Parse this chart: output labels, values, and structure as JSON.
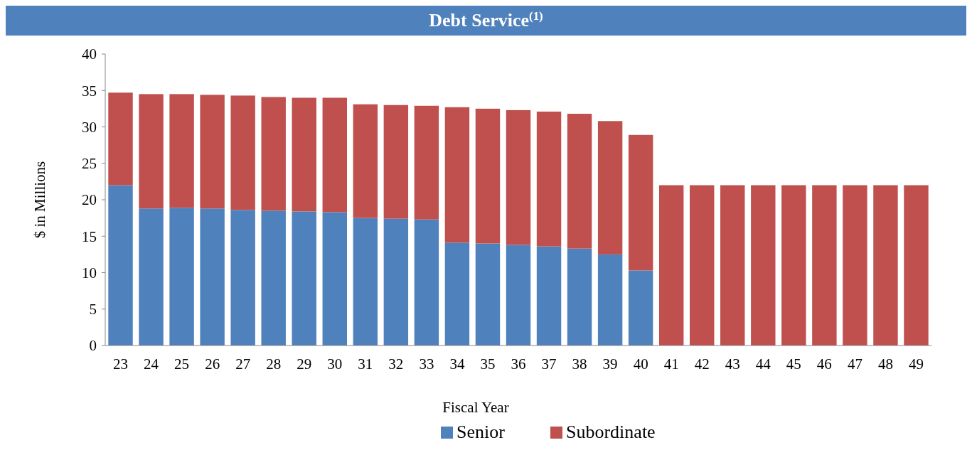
{
  "chart_data": {
    "type": "bar",
    "title": "Debt Service$^{(1)}$",
    "xlabel": "Fiscal Year",
    "ylabel": "$ in Millions",
    "categories": [
      "23",
      "24",
      "25",
      "26",
      "27",
      "28",
      "29",
      "30",
      "31",
      "32",
      "33",
      "34",
      "35",
      "36",
      "37",
      "38",
      "39",
      "40",
      "41",
      "42",
      "43",
      "44",
      "45",
      "46",
      "47",
      "48",
      "49"
    ],
    "stacked": true,
    "series": [
      {
        "name": "Senior",
        "color": "#4f81bd",
        "values": [
          22.0,
          18.8,
          18.9,
          18.8,
          18.6,
          18.5,
          18.4,
          18.3,
          17.5,
          17.4,
          17.3,
          14.1,
          14.0,
          13.8,
          13.6,
          13.3,
          12.5,
          10.3,
          0,
          0,
          0,
          0,
          0,
          0,
          0,
          0,
          0
        ]
      },
      {
        "name": "Subordinate",
        "color": "#c0504d",
        "values": [
          12.7,
          15.7,
          15.6,
          15.6,
          15.7,
          15.6,
          15.6,
          15.7,
          15.6,
          15.6,
          15.6,
          18.6,
          18.5,
          18.5,
          18.5,
          18.5,
          18.3,
          18.6,
          22.0,
          22.0,
          22.0,
          22.0,
          22.0,
          22.0,
          22.0,
          22.0,
          22.0
        ]
      }
    ],
    "ylim": [
      0,
      40
    ],
    "yticks": [
      0,
      5,
      10,
      15,
      20,
      25,
      30,
      35,
      40
    ],
    "grid": false,
    "legend": "bottom"
  }
}
